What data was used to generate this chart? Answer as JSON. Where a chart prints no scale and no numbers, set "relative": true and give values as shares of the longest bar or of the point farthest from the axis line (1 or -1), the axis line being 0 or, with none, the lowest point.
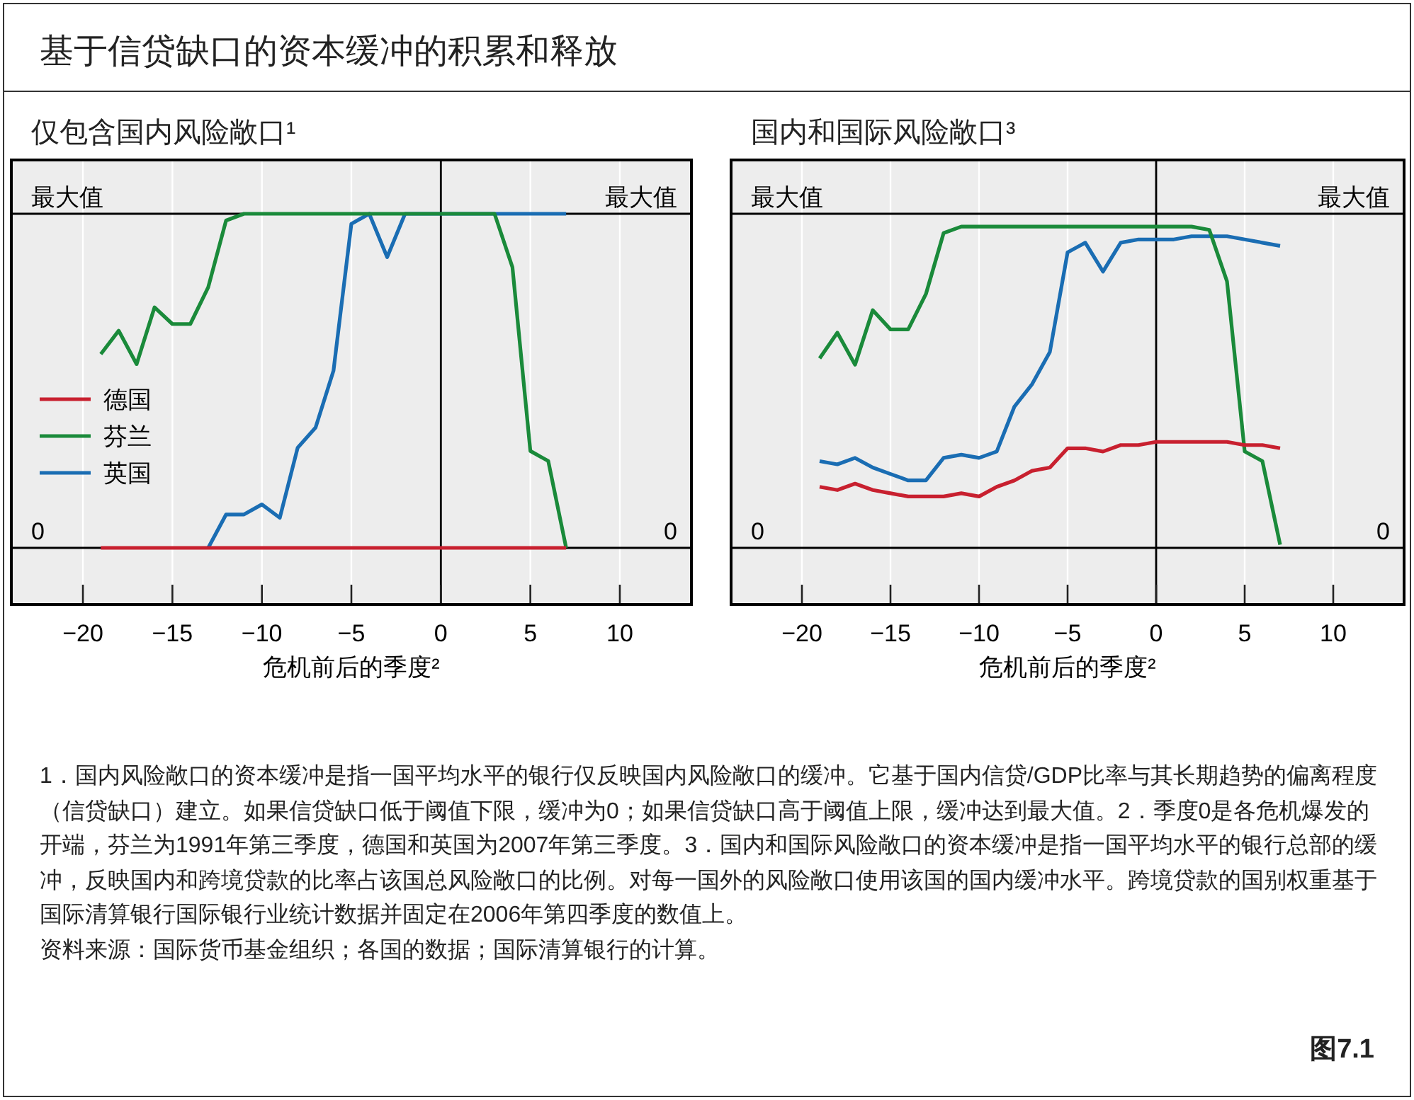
{
  "chart_data": [
    {
      "type": "line",
      "title": "基于信贷缺口的资本缓冲的积累和释放",
      "subtitle": "仅包含国内风险敞口¹",
      "xlabel": "危机前后的季度²",
      "x": [
        -19,
        -18,
        -17,
        -16,
        -15,
        -14,
        -13,
        -12,
        -11,
        -10,
        -9,
        -8,
        -7,
        -6,
        -5,
        -4,
        -3,
        -2,
        -1,
        0,
        1,
        2,
        3,
        4,
        5,
        6,
        7
      ],
      "series": [
        {
          "name": "德国",
          "color": "#c8202f",
          "values": [
            0,
            0,
            0,
            0,
            0,
            0,
            0,
            0,
            0,
            0,
            0,
            0,
            0,
            0,
            0,
            0,
            0,
            0,
            0,
            0,
            0,
            0,
            0,
            0,
            0,
            0,
            0
          ]
        },
        {
          "name": "芬兰",
          "color": "#1a8a3a",
          "values": [
            0.58,
            0.65,
            0.55,
            0.72,
            0.67,
            0.67,
            0.78,
            0.98,
            1,
            1,
            1,
            1,
            1,
            1,
            1,
            1,
            1,
            1,
            1,
            1,
            1,
            1,
            1,
            0.84,
            0.29,
            0.26,
            0
          ]
        },
        {
          "name": "英国",
          "color": "#1a6db3",
          "values": [
            null,
            null,
            null,
            null,
            null,
            null,
            0,
            0.1,
            0.1,
            0.13,
            0.09,
            0.3,
            0.36,
            0.53,
            0.97,
            1,
            0.87,
            1,
            1,
            1,
            1,
            1,
            1,
            1,
            1,
            1,
            1
          ]
        }
      ],
      "xlim": [
        -24,
        14
      ],
      "xticks": [
        -20,
        -15,
        -10,
        -5,
        0,
        5,
        10
      ],
      "relative": true,
      "ref_lines": [
        {
          "axis": "x",
          "value": 0,
          "color": "#000000"
        },
        {
          "axis": "y",
          "value": 0,
          "label": "0",
          "color": "#000000"
        },
        {
          "axis": "y",
          "value": 1,
          "label": "最大值",
          "color": "#000000"
        }
      ],
      "grid": "x",
      "legend": "left"
    },
    {
      "type": "line",
      "subtitle": "国内和国际风险敞口³",
      "xlabel": "危机前后的季度²",
      "x": [
        -19,
        -18,
        -17,
        -16,
        -15,
        -14,
        -13,
        -12,
        -11,
        -10,
        -9,
        -8,
        -7,
        -6,
        -5,
        -4,
        -3,
        -2,
        -1,
        0,
        1,
        2,
        3,
        4,
        5,
        6,
        7
      ],
      "series": [
        {
          "color": "#c8202f",
          "values": [
            0.19,
            0.18,
            0.2,
            0.18,
            0.17,
            0.16,
            0.16,
            0.16,
            0.17,
            0.16,
            0.19,
            0.21,
            0.24,
            0.25,
            0.31,
            0.31,
            0.3,
            0.32,
            0.32,
            0.33,
            0.33,
            0.33,
            0.33,
            0.33,
            0.32,
            0.32,
            0.31
          ]
        },
        {
          "color": "#1a8a3a",
          "values": [
            0.59,
            0.67,
            0.57,
            0.74,
            0.68,
            0.68,
            0.79,
            0.98,
            1,
            1,
            1,
            1,
            1,
            1,
            1,
            1,
            1,
            1,
            1,
            1,
            1,
            1,
            0.99,
            0.83,
            0.3,
            0.27,
            0.01
          ]
        },
        {
          "color": "#1a6db3",
          "values": [
            0.27,
            0.26,
            0.28,
            0.25,
            0.23,
            0.21,
            0.21,
            0.28,
            0.29,
            0.28,
            0.3,
            0.44,
            0.51,
            0.61,
            0.92,
            0.95,
            0.86,
            0.95,
            0.96,
            0.96,
            0.96,
            0.97,
            0.97,
            0.97,
            0.96,
            0.95,
            0.94
          ]
        }
      ],
      "xlim": [
        -24,
        14
      ],
      "xticks": [
        -20,
        -15,
        -10,
        -5,
        0,
        5,
        10
      ],
      "relative": true,
      "ref_lines": [
        {
          "axis": "x",
          "value": 0,
          "color": "#000000"
        },
        {
          "axis": "y",
          "value": 0,
          "label": "0",
          "color": "#000000"
        },
        {
          "axis": "y",
          "value": 1.04,
          "label": "最大值",
          "color": "#000000"
        }
      ],
      "grid": "x",
      "annotations": [
        "1．国内风险敞口的资本缓冲是指一国平均水平的银行仅反映国内风险敞口的缓冲。它基于国内信贷/GDP比率与其长期趋势的偏离程度（信贷缺口）建立。如果信贷缺口低于阈值下限，缓冲为0；如果信贷缺口高于阈值上限，缓冲达到最大值。2．季度0是各危机爆发的开端，芬兰为1991年第三季度，德国和英国为2007年第三季度。3．国内和国际风险敞口的资本缓冲是指一国平均水平的银行总部的缓冲，反映国内和跨境贷款的比率占该国总风险敞口的比例。对每一国外的风险敞口使用该国的国内缓冲水平。跨境贷款的国别权重基于国际清算银行国际银行业统计数据并固定在2006年第四季度的数值上。",
        "资料来源：国际货币基金组织；各国的数据；国际清算银行的计算。",
        "图7.1"
      ]
    }
  ]
}
